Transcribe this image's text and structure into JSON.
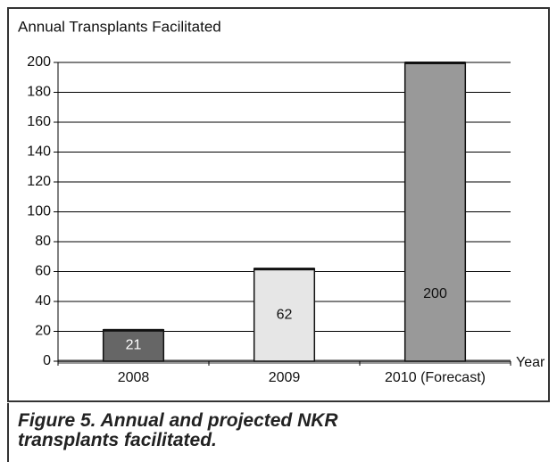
{
  "chart_data": {
    "type": "bar",
    "title": "Annual Transplants Facilitated",
    "caption": "Figure 5. Annual and projected NKR transplants facilitated.",
    "x_label": "Year",
    "categories": [
      "2008",
      "2009",
      "2010 (Forecast)"
    ],
    "values": [
      21,
      62,
      200
    ],
    "colors": [
      "#666666",
      "#e6e6e6",
      "#999999"
    ],
    "ylim": [
      0,
      200
    ],
    "yticks": [
      0,
      20,
      40,
      60,
      80,
      100,
      120,
      140,
      160,
      180,
      200
    ],
    "grid": true
  }
}
